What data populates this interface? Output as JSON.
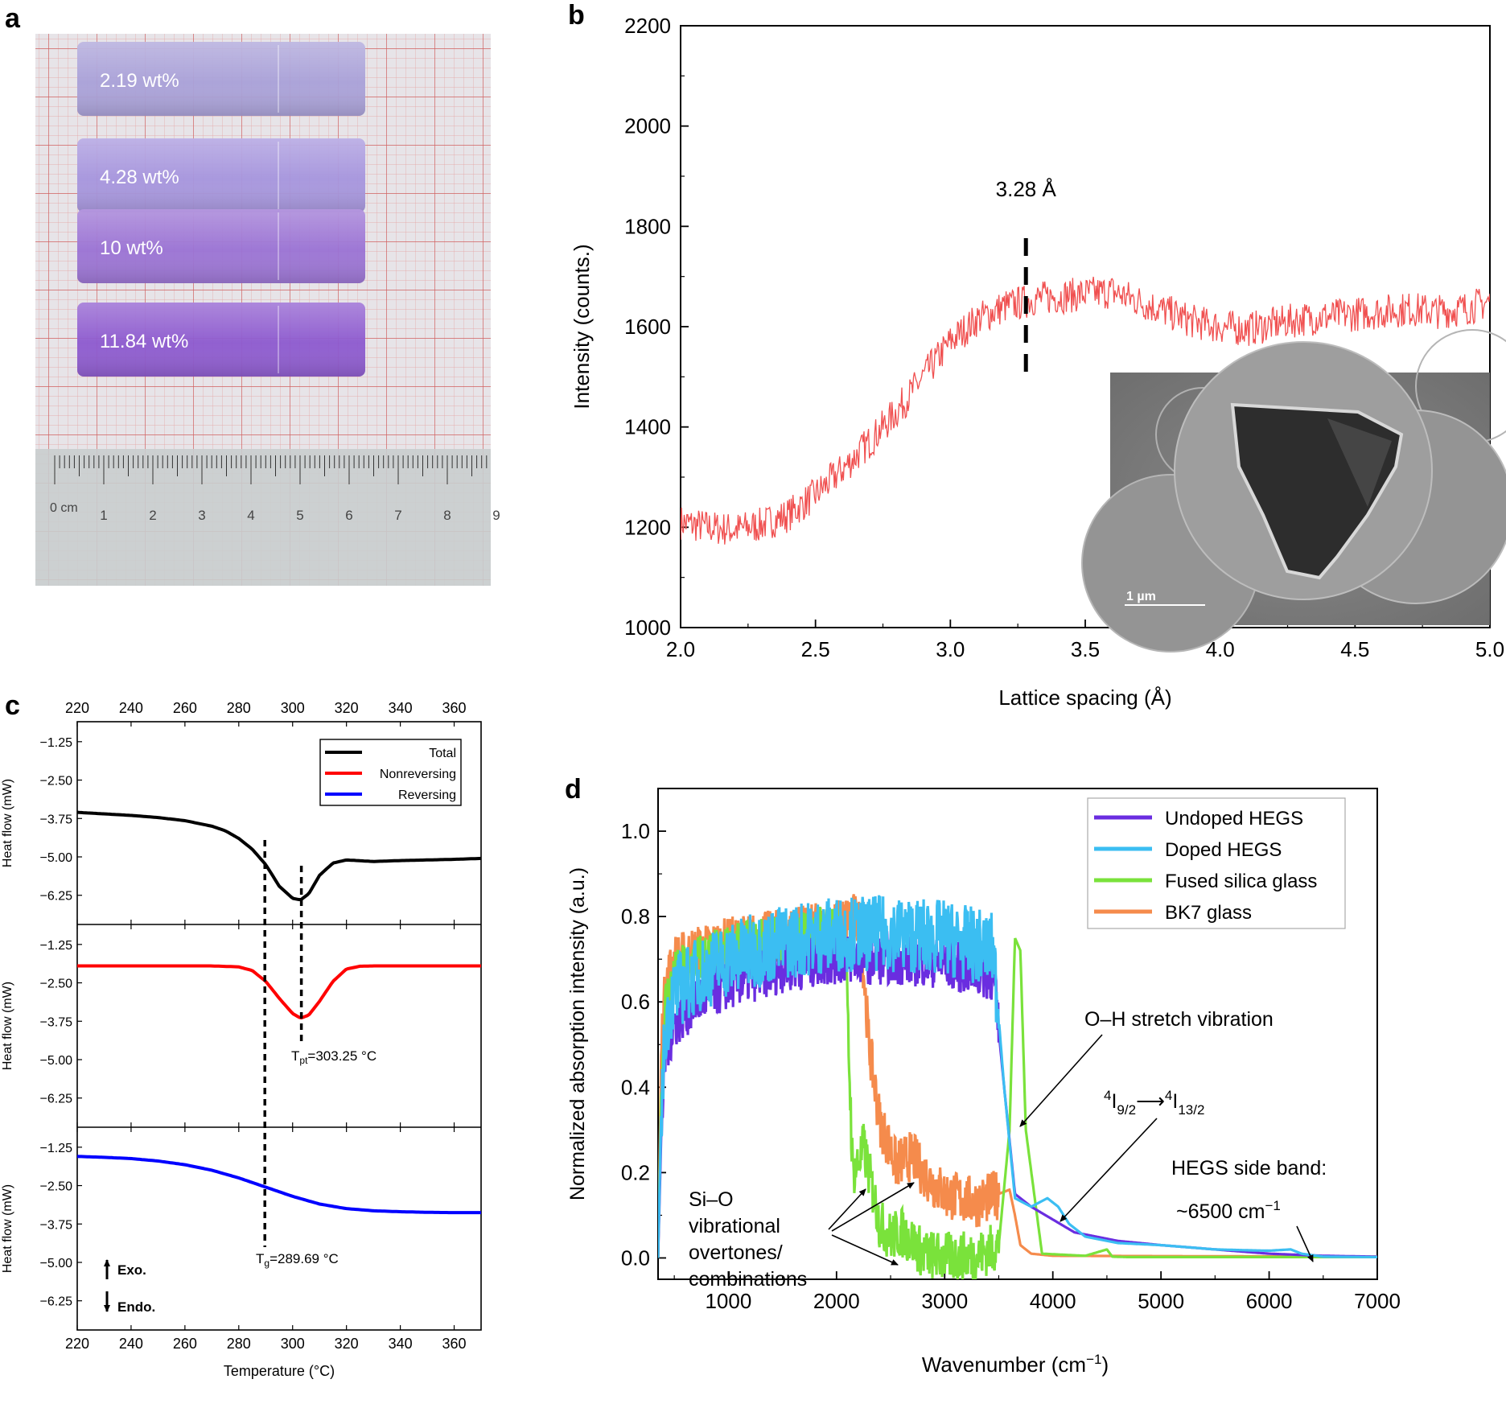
{
  "panels": {
    "a": {
      "label": "a",
      "samples": [
        "2.19 wt%",
        "4.28 wt%",
        "10 wt%",
        "11.84 wt%"
      ],
      "sample_colors": [
        "#a9a0d8",
        "#a595dd",
        "#9a72d4",
        "#8c59cf"
      ],
      "ruler": {
        "unit_label": "0 cm",
        "numbers": [
          "1",
          "2",
          "3",
          "4",
          "5",
          "6",
          "7",
          "8",
          "9"
        ]
      }
    },
    "b": {
      "label": "b",
      "inset_scale": "1 µm"
    },
    "c": {
      "label": "c",
      "legend": [
        "Total",
        "Nonreversing",
        "Reversing"
      ],
      "legend_colors": [
        "#000000",
        "#ff0000",
        "#0000ff"
      ],
      "tpt_label": "T",
      "tpt_sub": "pt",
      "tpt_value": "=303.25 °C",
      "tg_label": "T",
      "tg_sub": "g",
      "tg_value": "=289.69 °C",
      "exo": "Exo.",
      "endo": "Endo."
    },
    "d": {
      "label": "d",
      "oh_annotation": "O–H stretch vibration",
      "er_lower": "4",
      "er_i1": "I",
      "er_sub1": "9/2",
      "er_arrow": "⟶",
      "er_upper": "4",
      "er_i2": "I",
      "er_sub2": "13/2",
      "sideband_line1": "HEGS side band:",
      "sideband_line2": "~6500 cm",
      "sideband_sup": "−1",
      "sio_lines": [
        "Si–O",
        "vibrational",
        "overtones/",
        "combinations"
      ]
    }
  },
  "chart_data": [
    {
      "id": "b",
      "type": "line",
      "title": "",
      "xlabel": "Lattice spacing (Å)",
      "ylabel": "Intensity (counts.)",
      "xlim": [
        2.0,
        5.0
      ],
      "ylim": [
        1000,
        2200
      ],
      "xticks": [
        "2.0",
        "2.5",
        "3.0",
        "3.5",
        "4.0",
        "4.5",
        "5.0"
      ],
      "yticks": [
        "1000",
        "1200",
        "1400",
        "1600",
        "1800",
        "2000",
        "2200"
      ],
      "color": "#f05050",
      "x": [
        2.0,
        2.1,
        2.2,
        2.3,
        2.4,
        2.5,
        2.6,
        2.7,
        2.8,
        2.9,
        3.0,
        3.1,
        3.2,
        3.28,
        3.3,
        3.4,
        3.5,
        3.6,
        3.7,
        3.8,
        3.9,
        4.0,
        4.1,
        4.2,
        4.3,
        4.4,
        4.5,
        4.6,
        4.7,
        4.8,
        4.9,
        5.0
      ],
      "y": [
        1210,
        1200,
        1195,
        1205,
        1225,
        1265,
        1315,
        1370,
        1430,
        1500,
        1570,
        1615,
        1640,
        1650,
        1655,
        1660,
        1665,
        1670,
        1650,
        1630,
        1610,
        1600,
        1595,
        1605,
        1615,
        1620,
        1625,
        1630,
        1635,
        1630,
        1635,
        1650
      ],
      "noise_amplitude": 35,
      "peak_marker": {
        "x": 3.28,
        "label": "3.28 Å"
      }
    },
    {
      "id": "c",
      "type": "line",
      "xlabel": "Temperature (°C)",
      "ylabel": "Heat flow (mW)",
      "xlim": [
        220,
        370
      ],
      "ylim": [
        -7.2,
        -0.6
      ],
      "xticks": [
        "220",
        "240",
        "260",
        "280",
        "300",
        "320",
        "340",
        "360"
      ],
      "yticks": [
        "-1.25",
        "-2.50",
        "-3.75",
        "-5.00",
        "-6.25"
      ],
      "ytick_labels": [
        "−1.25",
        "−2.50",
        "−3.75",
        "−5.00",
        "−6.25"
      ],
      "markers": {
        "tg": 289.69,
        "tpt": 303.25
      },
      "series": [
        {
          "name": "Total",
          "color": "#000000",
          "x": [
            220,
            230,
            240,
            250,
            260,
            270,
            275,
            280,
            285,
            290,
            295,
            300,
            303,
            306,
            310,
            315,
            320,
            330,
            340,
            350,
            360,
            370
          ],
          "y": [
            -3.55,
            -3.6,
            -3.65,
            -3.72,
            -3.82,
            -4.0,
            -4.15,
            -4.4,
            -4.75,
            -5.25,
            -5.95,
            -6.35,
            -6.4,
            -6.2,
            -5.6,
            -5.2,
            -5.1,
            -5.15,
            -5.12,
            -5.1,
            -5.08,
            -5.05
          ]
        },
        {
          "name": "Nonreversing",
          "color": "#ff0000",
          "x": [
            220,
            270,
            280,
            285,
            290,
            295,
            300,
            303,
            306,
            310,
            315,
            320,
            325,
            330,
            370
          ],
          "y": [
            -1.95,
            -1.95,
            -1.98,
            -2.1,
            -2.45,
            -3.0,
            -3.5,
            -3.65,
            -3.55,
            -3.1,
            -2.45,
            -2.05,
            -1.96,
            -1.95,
            -1.95
          ]
        },
        {
          "name": "Reversing",
          "color": "#0000ff",
          "x": [
            220,
            230,
            240,
            250,
            260,
            270,
            280,
            290,
            300,
            310,
            320,
            330,
            340,
            350,
            360,
            370
          ],
          "y": [
            -1.55,
            -1.58,
            -1.62,
            -1.7,
            -1.82,
            -2.0,
            -2.25,
            -2.55,
            -2.85,
            -3.1,
            -3.25,
            -3.32,
            -3.35,
            -3.37,
            -3.38,
            -3.38
          ]
        }
      ]
    },
    {
      "id": "d",
      "type": "line",
      "xlabel": "Wavenumber (cm",
      "xlabel_sup": "−1",
      "xlabel_end": ")",
      "ylabel": "Normalized absorption intensity (a.u.)",
      "xlim": [
        350,
        7000
      ],
      "ylim": [
        -0.05,
        1.1
      ],
      "xticks": [
        "1000",
        "2000",
        "3000",
        "4000",
        "5000",
        "6000",
        "7000"
      ],
      "yticks": [
        "0.0",
        "0.2",
        "0.4",
        "0.6",
        "0.8",
        "1.0"
      ],
      "series": [
        {
          "name": "Undoped HEGS",
          "color": "#6a2de0",
          "x": [
            350,
            380,
            420,
            500,
            700,
            1000,
            1500,
            2000,
            2500,
            3000,
            3450,
            3550,
            3650,
            3800,
            4000,
            4200,
            4600,
            5000,
            5500,
            6000,
            6500,
            7000
          ],
          "y": [
            0.0,
            0.3,
            0.48,
            0.55,
            0.6,
            0.64,
            0.68,
            0.7,
            0.7,
            0.69,
            0.66,
            0.4,
            0.15,
            0.12,
            0.09,
            0.06,
            0.04,
            0.03,
            0.02,
            0.01,
            0.005,
            0.003
          ]
        },
        {
          "name": "Doped HEGS",
          "color": "#3bbef2",
          "x": [
            350,
            380,
            420,
            500,
            700,
            1000,
            1500,
            2000,
            2500,
            3000,
            3450,
            3550,
            3650,
            3800,
            3950,
            4050,
            4150,
            4300,
            4600,
            5000,
            5500,
            5800,
            6000,
            6200,
            6300,
            6500,
            7000
          ],
          "y": [
            0.0,
            0.35,
            0.55,
            0.62,
            0.66,
            0.7,
            0.74,
            0.76,
            0.76,
            0.75,
            0.72,
            0.4,
            0.14,
            0.12,
            0.14,
            0.12,
            0.08,
            0.05,
            0.035,
            0.03,
            0.02,
            0.018,
            0.017,
            0.02,
            0.01,
            0.003,
            0.002
          ]
        },
        {
          "name": "Fused silica glass",
          "color": "#7ae23b",
          "x": [
            350,
            380,
            420,
            500,
            700,
            1000,
            1500,
            2000,
            2080,
            2150,
            2200,
            2250,
            2300,
            2400,
            2500,
            2600,
            2700,
            2800,
            3000,
            3300,
            3500,
            3600,
            3650,
            3700,
            3750,
            3900,
            4300,
            4500,
            4550,
            4700,
            5000,
            7000
          ],
          "y": [
            0.0,
            0.4,
            0.6,
            0.66,
            0.7,
            0.72,
            0.75,
            0.77,
            0.74,
            0.2,
            0.22,
            0.26,
            0.2,
            0.08,
            0.05,
            0.06,
            0.04,
            0.01,
            0.002,
            0.005,
            0.03,
            0.3,
            0.75,
            0.72,
            0.3,
            0.01,
            0.005,
            0.02,
            0.003,
            0.002,
            0.002,
            0.002
          ]
        },
        {
          "name": "BK7 glass",
          "color": "#f58b4c",
          "x": [
            350,
            380,
            420,
            500,
            700,
            1000,
            1500,
            2000,
            2150,
            2220,
            2300,
            2400,
            2550,
            2700,
            2800,
            3000,
            3300,
            3500,
            3600,
            3650,
            3700,
            3800,
            4000,
            7000
          ],
          "y": [
            0.0,
            0.5,
            0.65,
            0.7,
            0.72,
            0.74,
            0.76,
            0.78,
            0.8,
            0.78,
            0.5,
            0.32,
            0.22,
            0.24,
            0.2,
            0.15,
            0.13,
            0.15,
            0.16,
            0.1,
            0.03,
            0.01,
            0.005,
            0.003
          ]
        }
      ],
      "noise_range": [
        380,
        3500
      ],
      "noise_amplitude": 0.06
    }
  ]
}
